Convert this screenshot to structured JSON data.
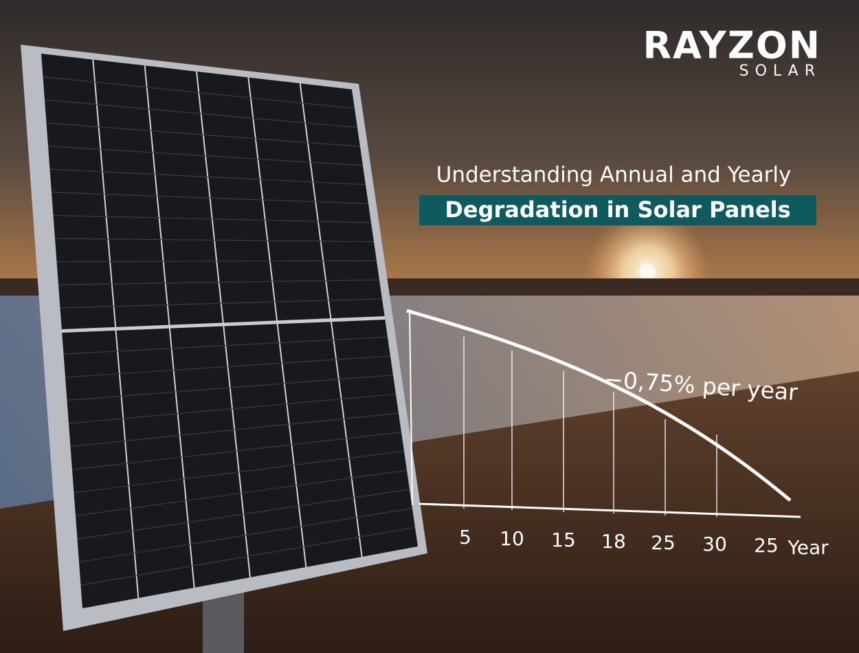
{
  "logo": {
    "name": "RAYZON",
    "sub": "SOLAR"
  },
  "heading": {
    "line1": "Understanding Annual and Yearly",
    "line2": "Degradation in Solar Panels"
  },
  "graphic": {
    "annotation": "−0,75% per year",
    "tick_labels": [
      "5",
      "10",
      "15",
      "18",
      "25",
      "30",
      "25"
    ],
    "axis_label": "Year"
  }
}
